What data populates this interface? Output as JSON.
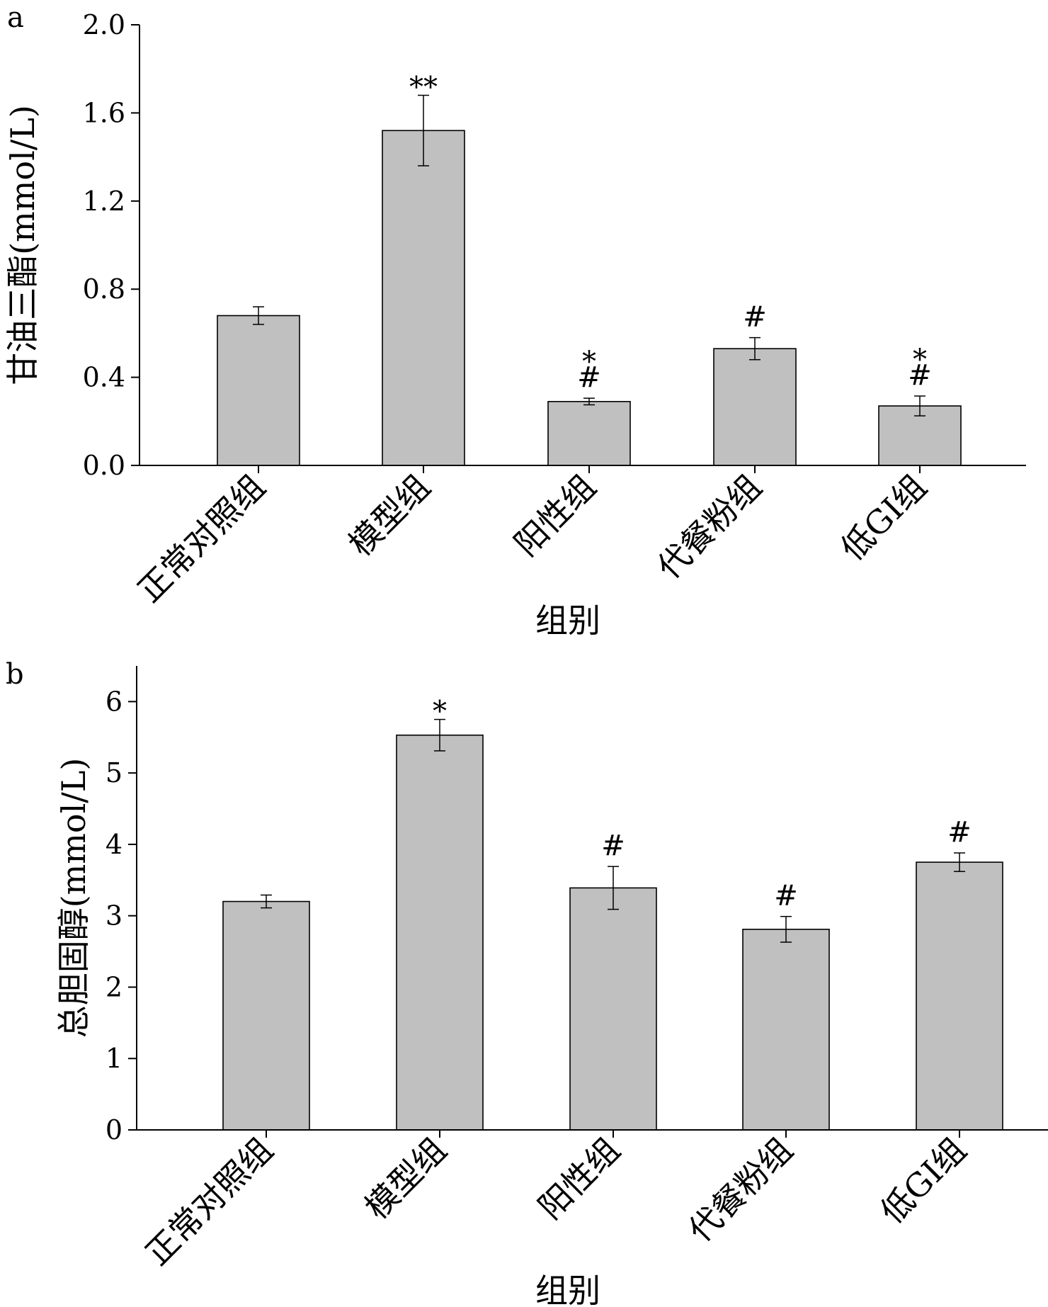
{
  "chart_data": [
    {
      "panel_label": "a",
      "type": "bar",
      "categories": [
        "正常对照组",
        "模型组",
        "阳性组",
        "代餐粉组",
        "低GI组"
      ],
      "values": [
        0.68,
        1.52,
        0.29,
        0.53,
        0.27
      ],
      "errors": [
        0.04,
        0.16,
        0.015,
        0.05,
        0.045
      ],
      "annotations": [
        [],
        [
          "**"
        ],
        [
          "#",
          "*"
        ],
        [
          "#"
        ],
        [
          "#",
          "*"
        ]
      ],
      "xlabel": "组别",
      "ylabel": "甘油三酯(mmol/L)",
      "ylim": [
        0,
        2.0
      ],
      "yticks": [
        0.0,
        0.4,
        0.8,
        1.2,
        1.6,
        2.0
      ],
      "ytick_labels": [
        "0.0",
        "0.4",
        "0.8",
        "1.2",
        "1.6",
        "2.0"
      ],
      "bar_color": "#c0c0c0",
      "grid": false
    },
    {
      "panel_label": "b",
      "type": "bar",
      "categories": [
        "正常对照组",
        "模型组",
        "阳性组",
        "代餐粉组",
        "低GI组"
      ],
      "values": [
        3.2,
        5.53,
        3.39,
        2.81,
        3.75
      ],
      "errors": [
        0.09,
        0.22,
        0.3,
        0.18,
        0.13
      ],
      "annotations": [
        [],
        [
          "*"
        ],
        [
          "#"
        ],
        [
          "#"
        ],
        [
          "#"
        ]
      ],
      "xlabel": "组别",
      "ylabel": "总胆固醇(mmol/L)",
      "ylim": [
        0,
        6.5
      ],
      "yticks": [
        0,
        1,
        2,
        3,
        4,
        5,
        6
      ],
      "ytick_labels": [
        "0",
        "1",
        "2",
        "3",
        "4",
        "5",
        "6"
      ],
      "bar_color": "#c0c0c0",
      "grid": false
    }
  ]
}
